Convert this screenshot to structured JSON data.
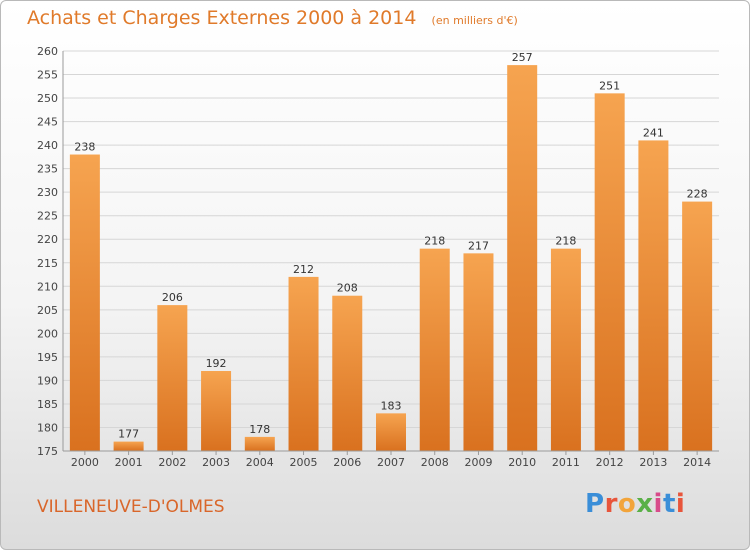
{
  "header": {
    "title": "Achats et Charges Externes 2000 à 2014",
    "subtitle": "(en milliers d'€)"
  },
  "footer": {
    "city": "VILLENEUVE-D'OLMES",
    "logo_letters": [
      "P",
      "r",
      "o",
      "x",
      "i",
      "t",
      "i"
    ]
  },
  "colors": {
    "bar_light": "#f6a450",
    "bar_dark": "#d9711f",
    "title": "#e07a2a",
    "grid": "#d6d6d6"
  },
  "chart_data": {
    "type": "bar",
    "title": "Achats et Charges Externes 2000 à 2014",
    "subtitle": "(en milliers d'€)",
    "categories": [
      "2000",
      "2001",
      "2002",
      "2003",
      "2004",
      "2005",
      "2006",
      "2007",
      "2008",
      "2009",
      "2010",
      "2011",
      "2012",
      "2013",
      "2014"
    ],
    "values": [
      238,
      177,
      206,
      192,
      178,
      212,
      208,
      183,
      218,
      217,
      257,
      218,
      251,
      241,
      228
    ],
    "ylim": [
      175,
      260
    ],
    "yticks": [
      175,
      180,
      185,
      190,
      195,
      200,
      205,
      210,
      215,
      220,
      225,
      230,
      235,
      240,
      245,
      250,
      255,
      260
    ],
    "grid": true,
    "legend": "none"
  }
}
